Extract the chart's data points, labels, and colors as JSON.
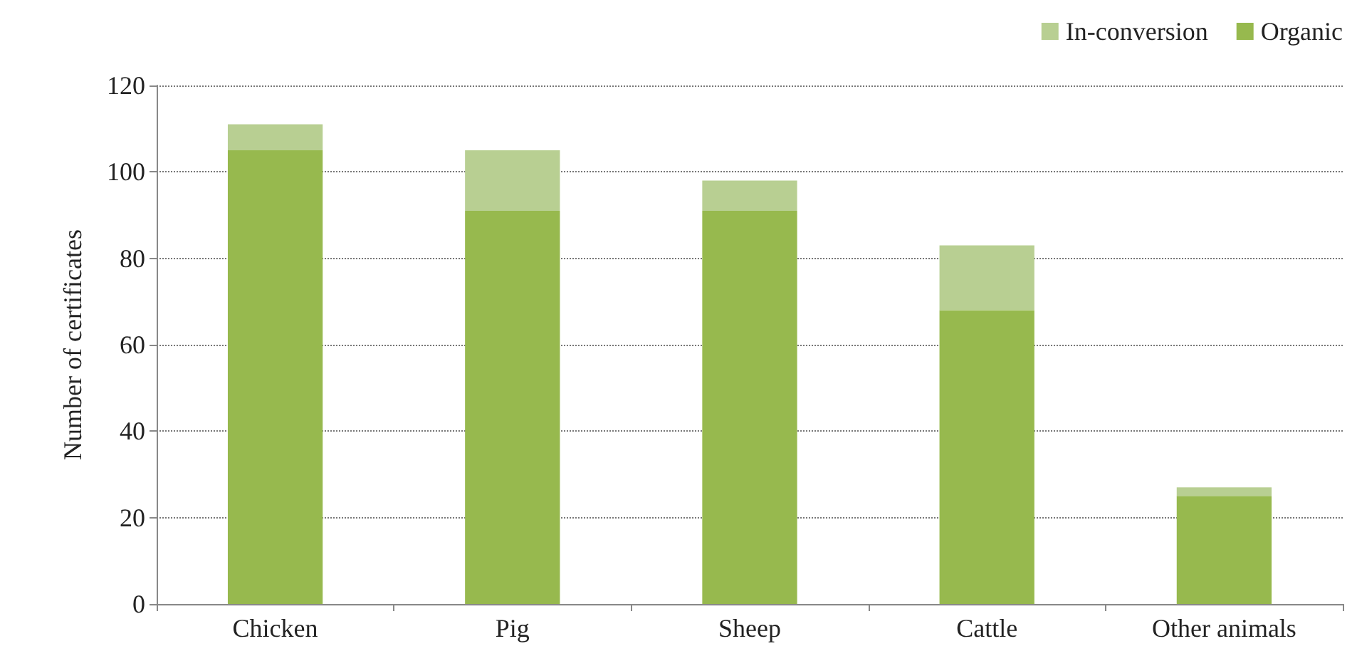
{
  "chart_data": {
    "type": "bar",
    "stacked": true,
    "ylabel": "Number of certificates",
    "categories": [
      "Chicken",
      "Pig",
      "Sheep",
      "Cattle",
      "Other animals"
    ],
    "series": [
      {
        "name": "Organic",
        "color": "#97b94e",
        "values": [
          105,
          91,
          91,
          68,
          25
        ]
      },
      {
        "name": "In-conversion",
        "color": "#b8cf92",
        "values": [
          6,
          14,
          7,
          15,
          2
        ]
      }
    ],
    "ylim": [
      0,
      120
    ],
    "yticks": [
      0,
      20,
      40,
      60,
      80,
      100,
      120
    ],
    "grid": "y",
    "legend": "top right"
  }
}
